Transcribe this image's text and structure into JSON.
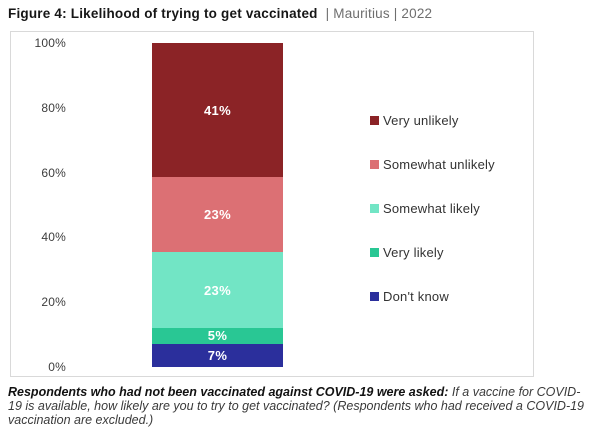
{
  "title": {
    "main": "Figure 4: Likelihood of trying to get vaccinated",
    "suffix": "| Mauritius | 2022"
  },
  "chart_data": {
    "type": "bar",
    "stacked": true,
    "title": "Likelihood of trying to get vaccinated",
    "categories": [
      "Mauritius 2022"
    ],
    "series": [
      {
        "name": "Very unlikely",
        "value": 41,
        "label": "41%",
        "color": "#8B2326"
      },
      {
        "name": "Somewhat unlikely",
        "value": 23,
        "label": "23%",
        "color": "#DC7074"
      },
      {
        "name": "Somewhat likely",
        "value": 23,
        "label": "23%",
        "color": "#72E5C5"
      },
      {
        "name": "Very likely",
        "value": 5,
        "label": "5%",
        "color": "#29C794"
      },
      {
        "name": "Don't know",
        "value": 7,
        "label": "7%",
        "color": "#2B2F9C"
      }
    ],
    "y_axis": {
      "ticks": [
        "100%",
        "80%",
        "60%",
        "40%",
        "20%",
        "0%"
      ],
      "min": 0,
      "max": 100
    },
    "legend_position": "right",
    "grid": false
  },
  "footnote": {
    "bold": "Respondents who had not been vaccinated against COVID-19 were asked:",
    "regular": " If a vaccine for COVID-19 is available, how likely are you to try to get vaccinated? (Respondents who had received a COVID-19 vaccination are excluded.)"
  }
}
